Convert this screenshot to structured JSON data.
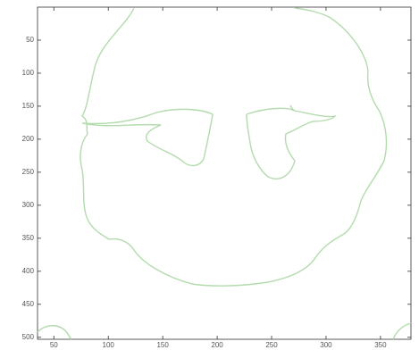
{
  "chart_data": {
    "type": "image",
    "xlim": [
      35,
      378
    ],
    "ylim": [
      0,
      503
    ],
    "y_reversed": true,
    "xticks": [
      50,
      100,
      150,
      200,
      250,
      300,
      350
    ],
    "yticks": [
      50,
      100,
      150,
      200,
      250,
      300,
      350,
      400,
      450,
      500
    ],
    "color": "#b3dbad"
  }
}
